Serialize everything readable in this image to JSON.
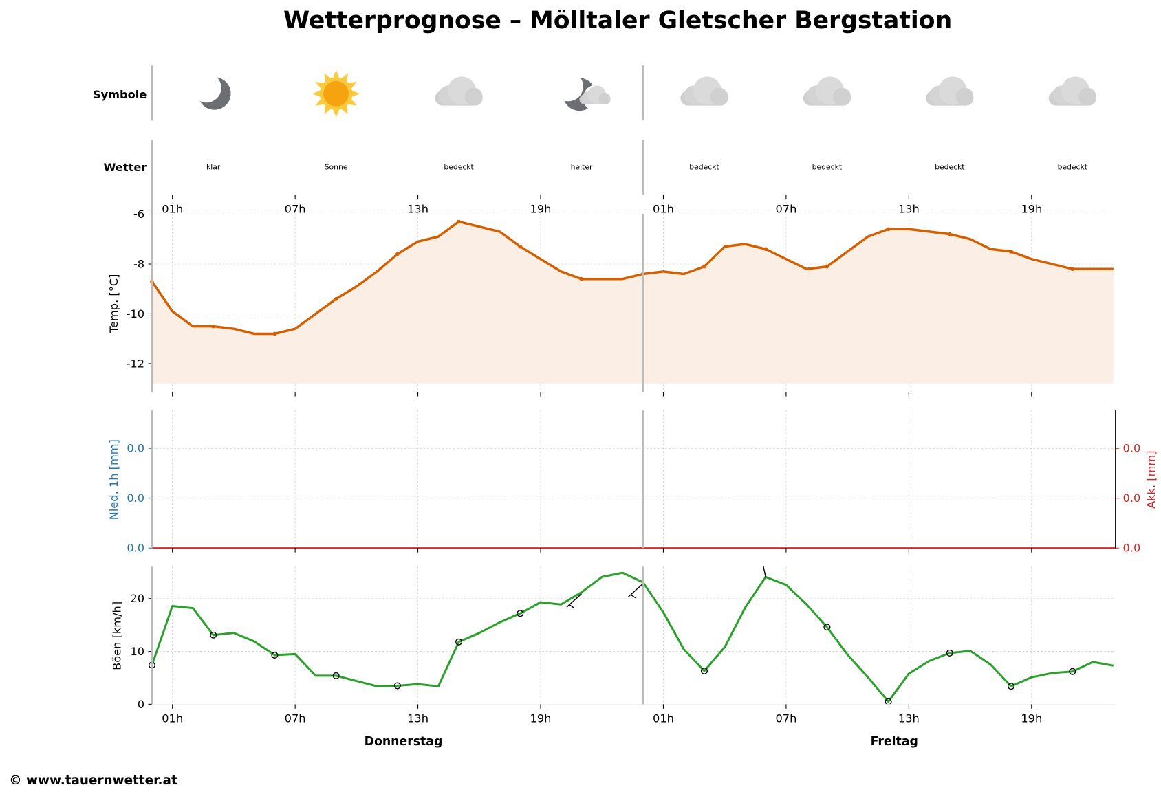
{
  "title": "Wetterprognose – Mölltaler Gletscher Bergstation",
  "footer": "© www.tauernwetter.at",
  "colors": {
    "temp": "#d35f00",
    "temp_fill": "#fbeee4",
    "gust": "#2ca02c",
    "precip_left": "#1f77b4",
    "precip_right": "#d62728",
    "divider": "#bbbbbb"
  },
  "rows": {
    "symbols_label": "Symbole",
    "weather_label": "Wetter",
    "entries": [
      {
        "hour": 3,
        "icon": "moon-icon",
        "text": "klar"
      },
      {
        "hour": 9,
        "icon": "sun-icon",
        "text": "Sonne"
      },
      {
        "hour": 15,
        "icon": "cloud-icon",
        "text": "bedeckt"
      },
      {
        "hour": 21,
        "icon": "moon-cloud-icon",
        "text": "heiter"
      },
      {
        "hour": 27,
        "icon": "cloud-icon",
        "text": "bedeckt"
      },
      {
        "hour": 33,
        "icon": "cloud-icon",
        "text": "bedeckt"
      },
      {
        "hour": 39,
        "icon": "cloud-icon",
        "text": "bedeckt"
      },
      {
        "hour": 45,
        "icon": "cloud-icon",
        "text": "bedeckt"
      }
    ]
  },
  "chart_data": [
    {
      "type": "area",
      "ylabel": "Temp. [°C]",
      "x_ticks": [
        1,
        7,
        13,
        19,
        25,
        31,
        37,
        43
      ],
      "x_tick_labels": [
        "01h",
        "07h",
        "13h",
        "19h",
        "01h",
        "07h",
        "13h",
        "19h"
      ],
      "y_ticks": [
        -6,
        -8,
        -10,
        -12
      ],
      "ylim": [
        -13.1,
        -5.2
      ],
      "xlim": [
        0,
        47
      ],
      "day_boundary": 24,
      "x": [
        0,
        1,
        2,
        3,
        4,
        5,
        6,
        7,
        8,
        9,
        10,
        11,
        12,
        13,
        14,
        15,
        16,
        17,
        18,
        19,
        20,
        21,
        22,
        23,
        24,
        25,
        26,
        27,
        28,
        29,
        30,
        31,
        32,
        33,
        34,
        35,
        36,
        37,
        38,
        39,
        40,
        41,
        42,
        43,
        44,
        45,
        46,
        47
      ],
      "values": [
        -8.7,
        -9.9,
        -10.5,
        -10.5,
        -10.6,
        -10.8,
        -10.8,
        -10.6,
        -10.0,
        -9.4,
        -8.9,
        -8.3,
        -7.6,
        -7.1,
        -6.9,
        -6.3,
        -6.5,
        -6.7,
        -7.3,
        -7.8,
        -8.3,
        -8.6,
        -8.6,
        -8.6,
        -8.4,
        -8.3,
        -8.4,
        -8.1,
        -7.3,
        -7.2,
        -7.4,
        -7.8,
        -8.2,
        -8.1,
        -7.5,
        -6.9,
        -6.6,
        -6.6,
        -6.7,
        -6.8,
        -7.0,
        -7.4,
        -7.5,
        -7.8,
        -8.0,
        -8.2,
        -8.2,
        -8.2
      ],
      "grid": true
    },
    {
      "type": "bar",
      "ylabel_left": "Nied. 1h [mm]",
      "ylabel_right": "Akk. [mm]",
      "y_tick_labels_left": [
        "0.0",
        "0.0",
        "0.0"
      ],
      "y_tick_labels_right": [
        "0.0",
        "0.0",
        "0.0"
      ],
      "hourly_precip": 0.0,
      "accumulated": 0.0,
      "grid": true
    },
    {
      "type": "line",
      "ylabel": "Böen [km/h]",
      "y_ticks": [
        0,
        10,
        20
      ],
      "ylim": [
        0,
        26
      ],
      "xlim": [
        0,
        47
      ],
      "x_tick_labels": [
        "01h",
        "07h",
        "13h",
        "19h",
        "01h",
        "07h",
        "13h",
        "19h"
      ],
      "days": [
        {
          "label": "Donnerstag",
          "center_hour": 12
        },
        {
          "label": "Freitag",
          "center_hour": 36
        }
      ],
      "values": [
        7.4,
        18.6,
        18.2,
        13.1,
        13.5,
        11.9,
        9.3,
        9.5,
        5.4,
        5.4,
        4.4,
        3.4,
        3.5,
        3.8,
        3.4,
        11.8,
        13.5,
        15.5,
        17.2,
        19.3,
        18.9,
        21.2,
        24.1,
        24.9,
        23.1,
        17.4,
        10.4,
        6.3,
        10.8,
        18.3,
        24.1,
        22.6,
        18.9,
        14.6,
        9.4,
        5.1,
        0.5,
        5.8,
        8.2,
        9.7,
        10.1,
        7.5,
        3.4,
        5.1,
        5.9,
        6.2,
        8.0,
        7.3
      ],
      "calm_markers_hours": [
        0,
        3,
        6,
        9,
        12,
        15,
        18,
        27,
        33,
        36,
        39,
        42,
        45
      ],
      "wind_barb_hours": [
        21,
        24,
        30
      ],
      "grid": true
    }
  ]
}
